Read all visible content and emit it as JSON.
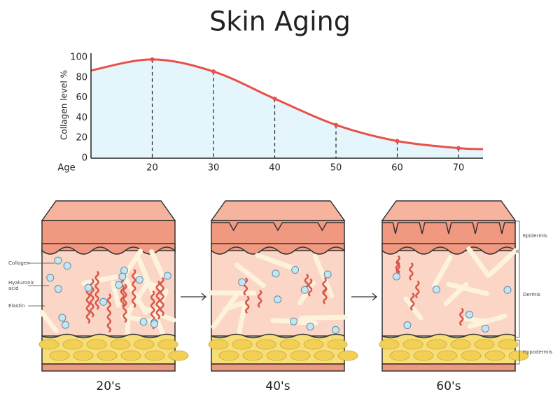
{
  "chart_data": {
    "type": "line",
    "title": "Skin Aging",
    "y_label": "Collagen level %",
    "x_label": "Age",
    "x": [
      10,
      20,
      30,
      40,
      50,
      60,
      70,
      74
    ],
    "series": [
      {
        "name": "Collagen level",
        "color": "#e8504a",
        "values": [
          87,
          98,
          86,
          59,
          33,
          17,
          10,
          9
        ]
      }
    ],
    "xlim": [
      10,
      74
    ],
    "xticks": [
      20,
      30,
      40,
      50,
      60,
      70
    ],
    "ylim": [
      0,
      100
    ],
    "yticks": [
      0,
      20,
      40,
      60,
      80,
      100
    ],
    "fill_color": "#e4f6fc"
  },
  "diagram": {
    "panels": [
      {
        "label": "20's"
      },
      {
        "label": "40's"
      },
      {
        "label": "60's"
      }
    ],
    "left_labels": {
      "collagen": "Collagen",
      "hyaluronic": [
        "Hyaluronic",
        "acid"
      ],
      "elastin": "Elastin"
    },
    "right_labels": {
      "epidermis": "Epidermis",
      "dermis": "Dermis",
      "hypodermis": "Hypodermis"
    }
  }
}
